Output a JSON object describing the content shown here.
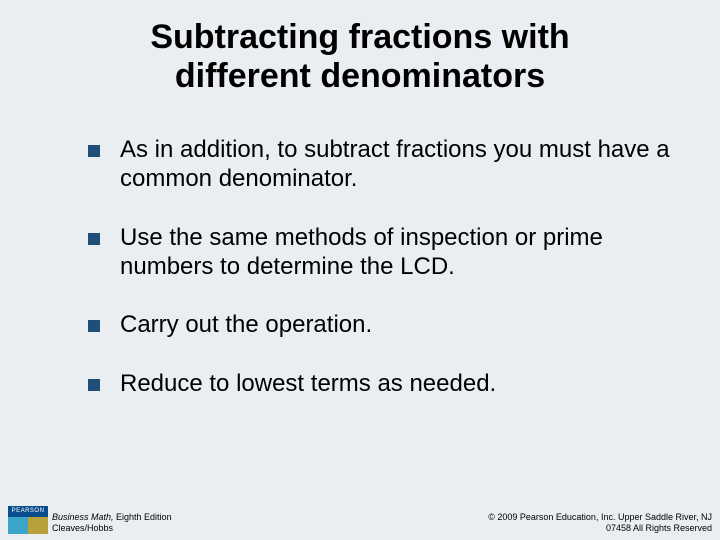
{
  "slide": {
    "title": "Subtracting fractions with different denominators",
    "bullets": [
      "As in addition, to subtract fractions you must have a common denominator.",
      "Use the same methods of inspection or prime numbers to determine the LCD.",
      "Carry out the operation.",
      "Reduce to lowest terms as needed."
    ],
    "bullet_color": "#1f4e79",
    "background_color": "#eaeef2"
  },
  "footer": {
    "logo_text": "PEARSON",
    "left_line1_italic": "Business Math,",
    "left_line1_rest": " Eighth Edition",
    "left_line2": "Cleaves/Hobbs",
    "right_line1": "© 2009 Pearson Education, Inc. Upper Saddle River, NJ",
    "right_line2": "07458  All Rights Reserved"
  }
}
